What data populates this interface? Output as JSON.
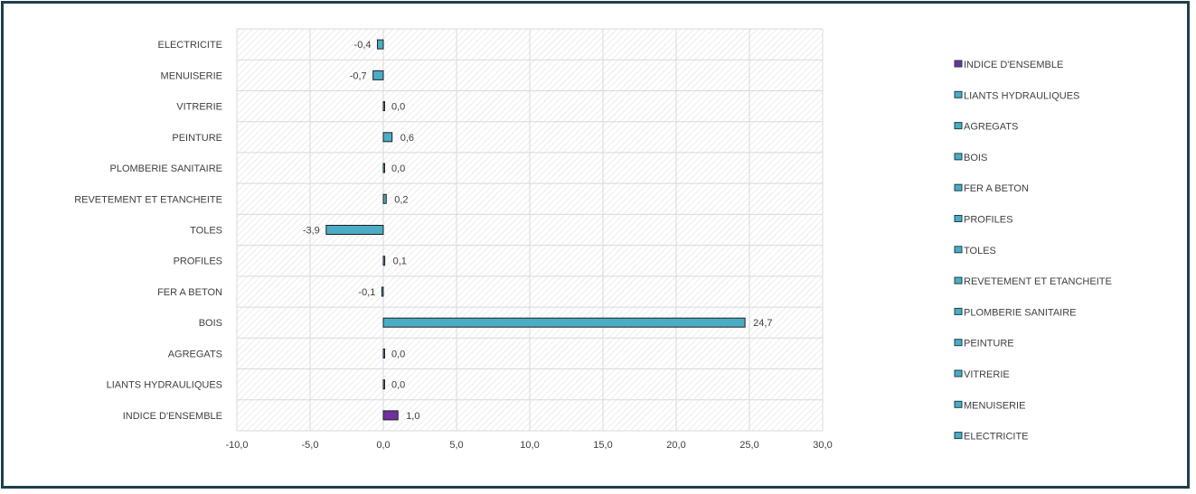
{
  "chart_data": {
    "type": "bar",
    "orientation": "horizontal",
    "categories": [
      "INDICE D'ENSEMBLE",
      "LIANTS HYDRAULIQUES",
      "AGREGATS",
      "BOIS",
      "FER A BETON",
      "PROFILES",
      "TOLES",
      "REVETEMENT ET ETANCHEITE",
      "PLOMBERIE SANITAIRE",
      "PEINTURE",
      "VITRERIE",
      "MENUISERIE",
      "ELECTRICITE"
    ],
    "values": [
      1.0,
      0.0,
      0.0,
      24.7,
      -0.1,
      0.1,
      -3.9,
      0.2,
      0.0,
      0.6,
      0.0,
      -0.7,
      -0.4
    ],
    "data_labels": [
      "1,0",
      "0,0",
      "0,0",
      "24,7",
      "-0,1",
      "0,1",
      "-3,9",
      "0,2",
      "0,0",
      "0,6",
      "0,0",
      "-0,7",
      "-0,4"
    ],
    "xlim": [
      -10,
      30
    ],
    "x_ticks": [
      -10,
      -5,
      0,
      5,
      10,
      15,
      20,
      25,
      30
    ],
    "x_tick_labels": [
      "-10,0",
      "-5,0",
      "0,0",
      "5,0",
      "10,0",
      "15,0",
      "20,0",
      "25,0",
      "30,0"
    ],
    "grid": true,
    "plot_area_pattern": "diagonal-hatch",
    "legend_position": "right",
    "legend_entries": [
      "INDICE D'ENSEMBLE",
      "LIANTS HYDRAULIQUES",
      "AGREGATS",
      "BOIS",
      "FER A BETON",
      "PROFILES",
      "TOLES",
      "REVETEMENT ET ETANCHEITE",
      "PLOMBERIE SANITAIRE",
      "PEINTURE",
      "VITRERIE",
      "MENUISERIE",
      "ELECTRICITE"
    ],
    "colors": {
      "highlight": "#7030a0",
      "default": "#4bacc6",
      "bar_border": "#1f1f1f"
    },
    "title": "",
    "xlabel": "",
    "ylabel": ""
  }
}
